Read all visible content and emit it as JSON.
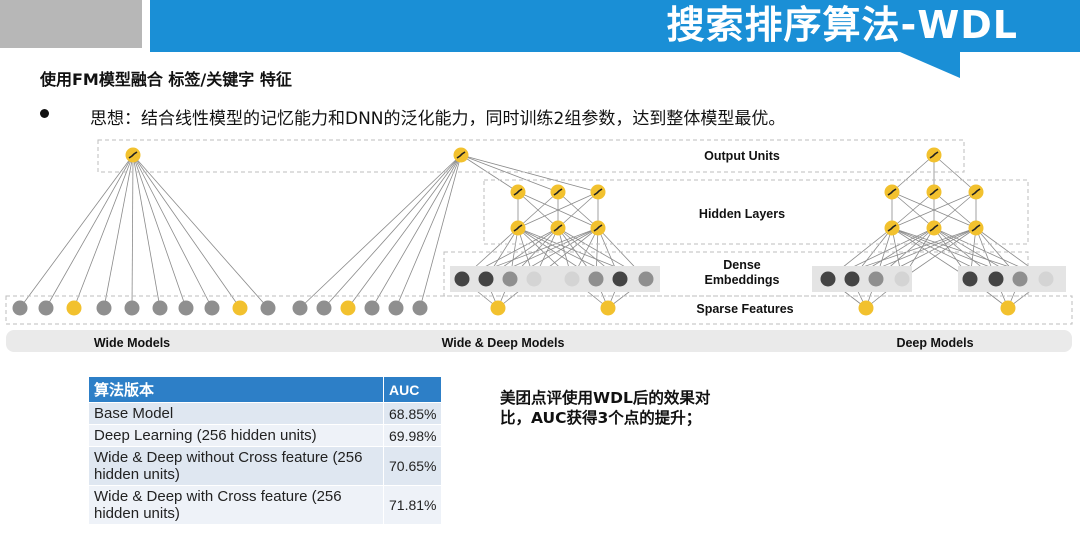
{
  "header": {
    "title": "搜索排序算法-WDL",
    "blue": "#1a8fd6",
    "grey": "#b7b7b7"
  },
  "subtitle": "使用FM模型融合 标签/关键字 特征",
  "bullet": "思想：结合线性模型的记忆能力和DNN的泛化能力，同时训练2组参数，达到整体模型最优。",
  "diagram": {
    "layer_labels": {
      "output": "Output Units",
      "hidden": "Hidden Layers",
      "dense_1": "Dense",
      "dense_2": "Embeddings",
      "sparse": "Sparse Features"
    },
    "model_labels": {
      "wide": "Wide Models",
      "wide_deep": "Wide & Deep Models",
      "deep": "Deep Models"
    },
    "colors": {
      "yellow": "#f2c12e",
      "grey": "#8f8f8f",
      "dark": "#444444",
      "light": "#d4d4d4"
    },
    "icons": [
      "sigmoid-unit-icon",
      "relu-unit-icon"
    ]
  },
  "table": {
    "headers": [
      "算法版本",
      "AUC"
    ],
    "rows": [
      [
        "Base Model",
        "68.85%"
      ],
      [
        "Deep Learning (256 hidden units)",
        "69.98%"
      ],
      [
        "Wide & Deep without Cross feature (256 hidden units)",
        "70.65%"
      ],
      [
        "Wide & Deep with Cross feature (256 hidden units)",
        "71.81%"
      ]
    ]
  },
  "note": "美团点评使用WDL后的效果对比，AUC获得3个点的提升；"
}
